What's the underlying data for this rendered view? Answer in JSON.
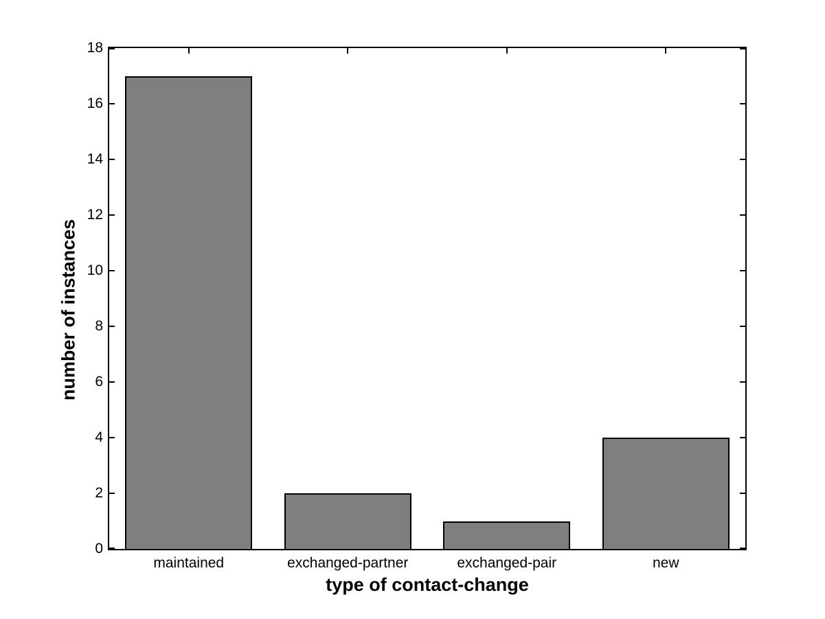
{
  "figure": {
    "background_color": "#ffffff",
    "axis_color": "#000000",
    "text_color": "#000000"
  },
  "chart_data": {
    "type": "bar",
    "title": "",
    "xlabel": "type of contact-change",
    "ylabel": "number of instances",
    "categories": [
      "maintained",
      "exchanged-partner",
      "exchanged-pair",
      "new"
    ],
    "values": [
      17,
      2,
      1,
      4
    ],
    "ylim": [
      0,
      18
    ],
    "yticks": [
      0,
      2,
      4,
      6,
      8,
      10,
      12,
      14,
      16,
      18
    ],
    "grid": false,
    "legend": "none",
    "bar_color": "#7f7f7f",
    "bar_edge_color": "#000000",
    "bar_width_fraction": 0.8,
    "tick_direction": "in",
    "box": true
  }
}
